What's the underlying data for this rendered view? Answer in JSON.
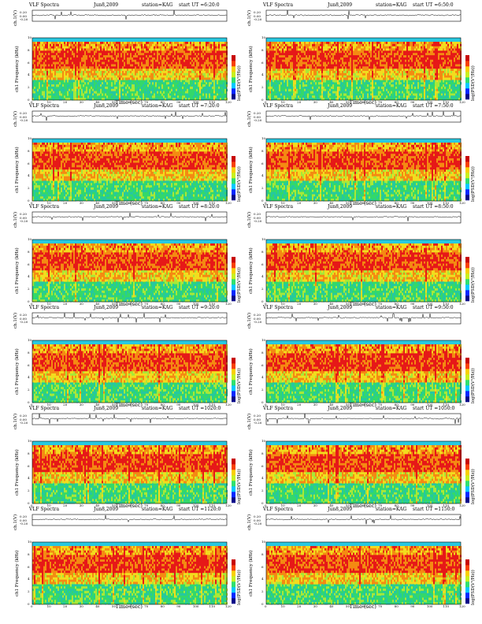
{
  "colors": {
    "spectro": [
      "#25c8a0",
      "#33d86a",
      "#a8e838",
      "#f2dc1e",
      "#f48a12",
      "#e61818"
    ],
    "band_top": "#28c8e0",
    "colorbar": [
      "#000088",
      "#0028ff",
      "#00c8ff",
      "#30e070",
      "#c8f020",
      "#f8d000",
      "#f84000",
      "#c80000"
    ]
  },
  "common": {
    "left_title": "VLF Spectra",
    "date": "Jun8,2009",
    "station": "station=KAG",
    "start_prefix": "start  UT =",
    "ch_label": "ch.1(V)",
    "freq_label": "ch1 Frequency (kHz)",
    "time_label": "Time (sec)",
    "cbar_label": "log(PSD(V²/Hz))",
    "x_ticks": [
      "0",
      "10",
      "20",
      "30",
      "40",
      "50",
      "60",
      "70",
      "80",
      "90",
      "100",
      "110",
      "120"
    ],
    "y_ticks": [
      "0",
      "2",
      "4",
      "6",
      "8",
      "10"
    ],
    "ch_ticks": [
      "0.20",
      "0.00",
      "-0.20"
    ]
  },
  "chart_data": [
    {
      "type": "heatmap",
      "title": "VLF Spectra  Jun8,2009  station=KAG  start UT =6:20:0",
      "start_ut": "6:20:0",
      "xlabel": "Time (sec)",
      "ylabel": "Frequency (kHz)",
      "xlim": [
        0,
        120
      ],
      "ylim": [
        0,
        10
      ]
    },
    {
      "type": "heatmap",
      "title": "VLF Spectra  Jun8,2009  station=KAG  start UT =6:50:0",
      "start_ut": "6:50:0",
      "xlabel": "Time (sec)",
      "ylabel": "Frequency (kHz)",
      "xlim": [
        0,
        120
      ],
      "ylim": [
        0,
        10
      ]
    },
    {
      "type": "heatmap",
      "title": "VLF Spectra  Jun8,2009  station=KAG  start UT =7:20:0",
      "start_ut": "7:20:0",
      "xlabel": "Time (sec)",
      "ylabel": "Frequency (kHz)",
      "xlim": [
        0,
        120
      ],
      "ylim": [
        0,
        10
      ]
    },
    {
      "type": "heatmap",
      "title": "VLF Spectra  Jun8,2009  station=KAG  start UT =7:50:0",
      "start_ut": "7:50:0",
      "xlabel": "Time (sec)",
      "ylabel": "Frequency (kHz)",
      "xlim": [
        0,
        120
      ],
      "ylim": [
        0,
        10
      ]
    },
    {
      "type": "heatmap",
      "title": "VLF Spectra  Jun8,2009  station=KAG  start UT =8:20:0",
      "start_ut": "8:20:0",
      "xlabel": "Time (sec)",
      "ylabel": "Frequency (kHz)",
      "xlim": [
        0,
        120
      ],
      "ylim": [
        0,
        10
      ]
    },
    {
      "type": "heatmap",
      "title": "VLF Spectra  Jun8,2009  station=KAG  start UT =8:50:0",
      "start_ut": "8:50:0",
      "xlabel": "Time (sec)",
      "ylabel": "Frequency (kHz)",
      "xlim": [
        0,
        120
      ],
      "ylim": [
        0,
        10
      ]
    },
    {
      "type": "heatmap",
      "title": "VLF Spectra  Jun8,2009  station=KAG  start UT =9:20:0",
      "start_ut": "9:20:0",
      "xlabel": "Time (sec)",
      "ylabel": "Frequency (kHz)",
      "xlim": [
        0,
        120
      ],
      "ylim": [
        0,
        10
      ]
    },
    {
      "type": "heatmap",
      "title": "VLF Spectra  Jun8,2009  station=KAG  start UT =9:50:0",
      "start_ut": "9:50:0",
      "xlabel": "Time (sec)",
      "ylabel": "Frequency (kHz)",
      "xlim": [
        0,
        120
      ],
      "ylim": [
        0,
        10
      ]
    },
    {
      "type": "heatmap",
      "title": "VLF Spectra  Jun8,2009  station=KAG  start UT =1020:0",
      "start_ut": "1020:0",
      "xlabel": "Time (sec)",
      "ylabel": "Frequency (kHz)",
      "xlim": [
        0,
        120
      ],
      "ylim": [
        0,
        10
      ]
    },
    {
      "type": "heatmap",
      "title": "VLF Spectra  Jun8,2009  station=KAG  start UT =1050:0",
      "start_ut": "1050:0",
      "xlabel": "Time (sec)",
      "ylabel": "Frequency (kHz)",
      "xlim": [
        0,
        120
      ],
      "ylim": [
        0,
        10
      ]
    },
    {
      "type": "heatmap",
      "title": "VLF Spectra  Jun8,2009  station=KAG  start UT =1120:0",
      "start_ut": "1120:0",
      "xlabel": "Time (sec)",
      "ylabel": "Frequency (kHz)",
      "xlim": [
        0,
        120
      ],
      "ylim": [
        0,
        10
      ]
    },
    {
      "type": "heatmap",
      "title": "VLF Spectra  Jun8,2009  station=KAG  start UT =1150:0",
      "start_ut": "1150:0",
      "xlabel": "Time (sec)",
      "ylabel": "Frequency (kHz)",
      "xlim": [
        0,
        120
      ],
      "ylim": [
        0,
        10
      ]
    }
  ]
}
